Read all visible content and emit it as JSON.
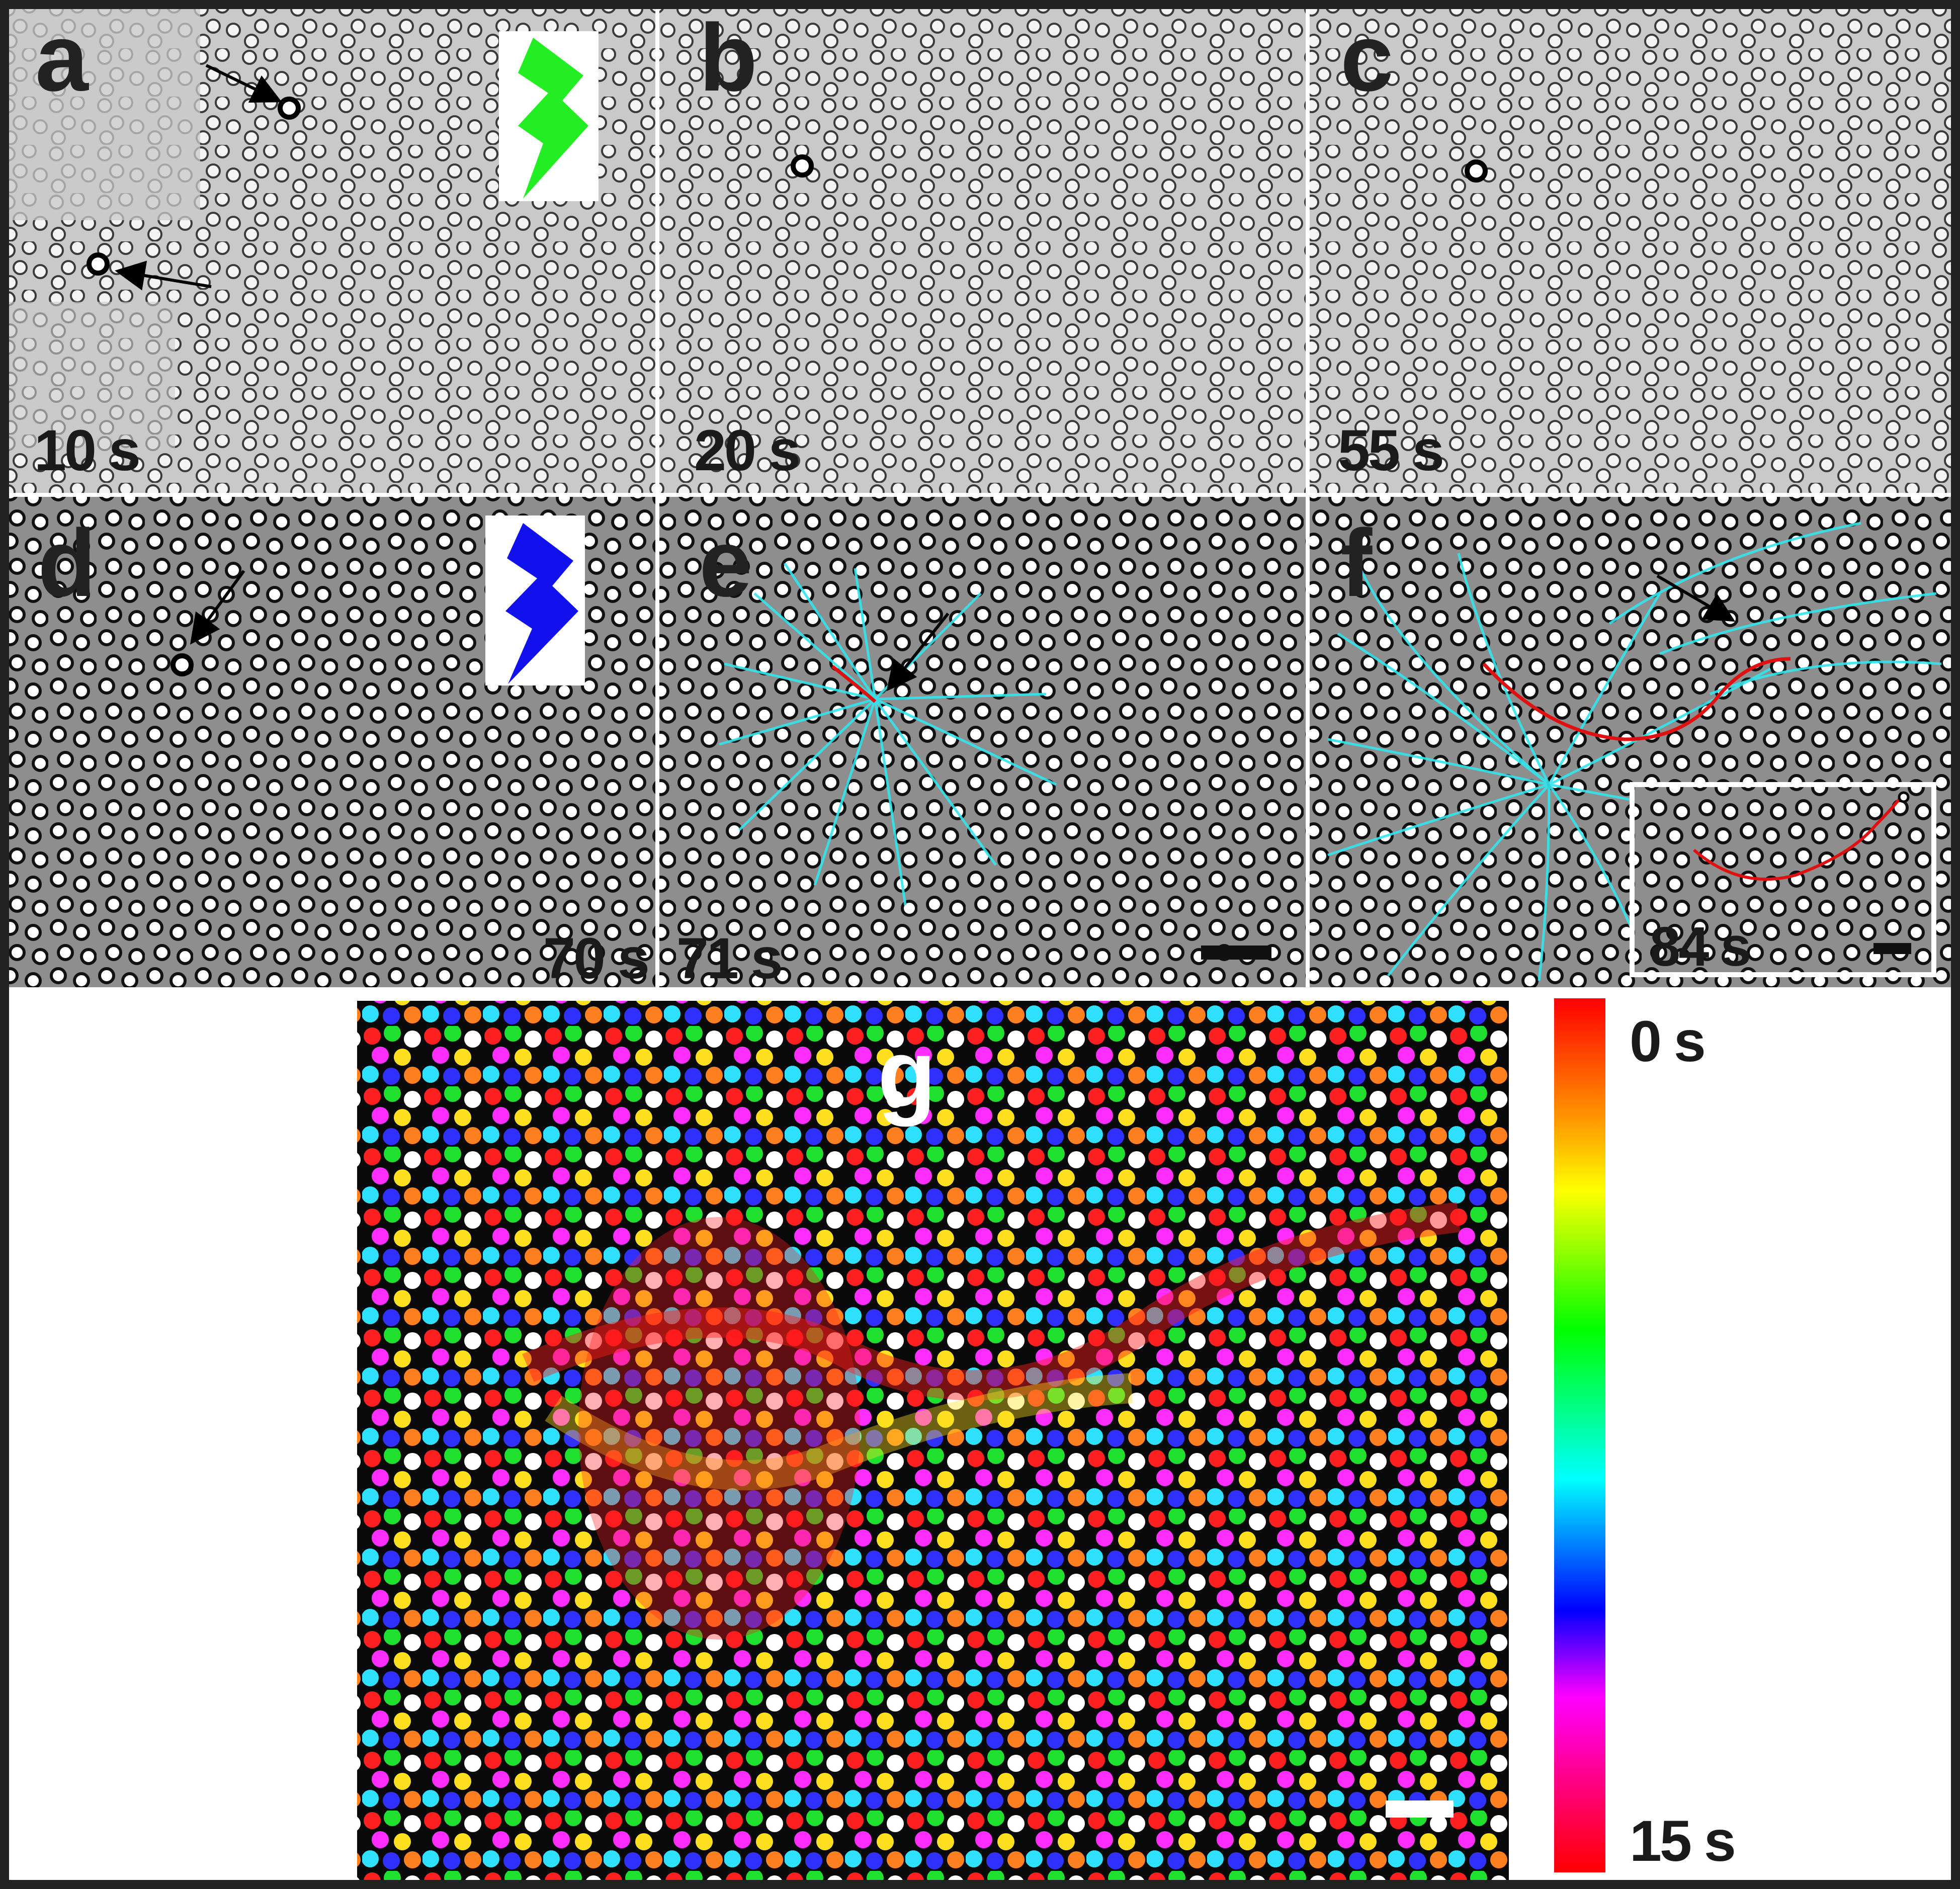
{
  "panels": [
    {
      "letter": "a",
      "time": "10 s"
    },
    {
      "letter": "b",
      "time": "20 s"
    },
    {
      "letter": "c",
      "time": "55 s"
    },
    {
      "letter": "d",
      "time": "70 s"
    },
    {
      "letter": "e",
      "time": "71 s"
    },
    {
      "letter": "f",
      "time": "84 s"
    },
    {
      "letter": "g",
      "time": ""
    }
  ],
  "colorbar": {
    "top_label": "0 s",
    "bottom_label": "15 s"
  },
  "colors": {
    "green_flash": "#22ee22",
    "blue_flash": "#1111ee",
    "trajectory": "#33e6ee",
    "path": "#e01010",
    "frame": "#222222"
  },
  "icons": [
    "lightning-bolt-icon",
    "lightning-bolt-icon",
    "arrow-icon",
    "scale-bar"
  ]
}
